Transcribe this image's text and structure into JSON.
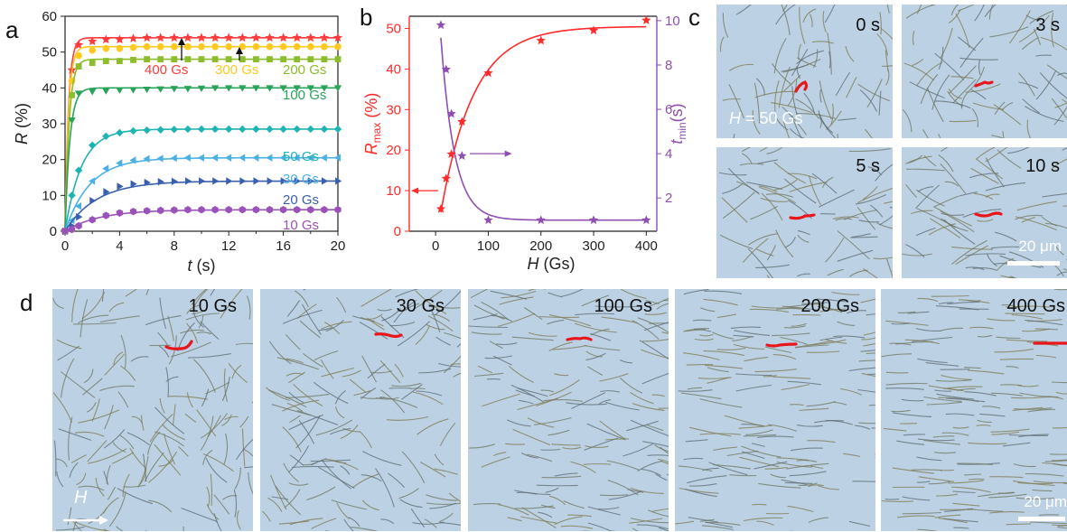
{
  "panels": {
    "a": "a",
    "b": "b",
    "c": "c",
    "d": "d"
  },
  "chart_data": [
    {
      "type": "line",
      "xlabel_italic": "t",
      "xlabel_unit": " (s)",
      "ylabel_italic": "R",
      "ylabel_unit": " (%)",
      "xlim": [
        0,
        20
      ],
      "ylim": [
        0,
        60
      ],
      "xticks": [
        0,
        4,
        8,
        12,
        16,
        20
      ],
      "yticks": [
        0,
        10,
        20,
        30,
        40,
        50,
        60
      ],
      "x": [
        0,
        0.5,
        1,
        2,
        3,
        4,
        5,
        6,
        7,
        8,
        9,
        10,
        11,
        12,
        13,
        14,
        15,
        16,
        17,
        18,
        19,
        20
      ],
      "series": [
        {
          "name": "400 Gs",
          "color": "#ff3b3b",
          "marker": "star",
          "plateau": 54,
          "tau": 0.25,
          "values": [
            0,
            45,
            52,
            53,
            53.5,
            53.5,
            53.8,
            54,
            54,
            54,
            54,
            54,
            54,
            54,
            54,
            54,
            54,
            54,
            54,
            54,
            54,
            54
          ]
        },
        {
          "name": "300 Gs",
          "color": "#ffc91f",
          "marker": "circle",
          "plateau": 51.5,
          "tau": 0.25,
          "values": [
            0,
            42,
            49,
            50.5,
            51,
            51,
            51.3,
            51.5,
            51.5,
            51.5,
            51.5,
            51.5,
            51.5,
            51.5,
            51.5,
            51.5,
            51.5,
            51.5,
            51.5,
            51.5,
            51.5,
            51.5
          ]
        },
        {
          "name": "200 Gs",
          "color": "#8dbd2c",
          "marker": "square",
          "plateau": 48,
          "tau": 0.3,
          "values": [
            0,
            38,
            46,
            47,
            47.5,
            47.5,
            47.8,
            48,
            48,
            48,
            48,
            48,
            48,
            48,
            48,
            48,
            48,
            48,
            48,
            48,
            48,
            48
          ]
        },
        {
          "name": "100 Gs",
          "color": "#2aa35a",
          "marker": "tri-down",
          "plateau": 40,
          "tau": 0.35,
          "values": [
            0,
            31,
            38.5,
            39,
            39.2,
            39.4,
            39.5,
            39.6,
            39.7,
            39.8,
            39.8,
            39.9,
            40,
            40,
            40,
            40,
            40,
            40,
            40,
            40,
            40,
            40
          ]
        },
        {
          "name": "50 Gs",
          "color": "#1fb3b3",
          "marker": "diamond",
          "plateau": 28.5,
          "tau": 1.2,
          "values": [
            0,
            10,
            17,
            24,
            26.5,
            27.5,
            28,
            28.2,
            28.3,
            28.4,
            28.5,
            28.5,
            28.5,
            28.5,
            28.5,
            28.5,
            28.5,
            28.5,
            28.5,
            28.5,
            28.5,
            28.5
          ]
        },
        {
          "name": "30 Gs",
          "color": "#4ab0e6",
          "marker": "tri-left",
          "plateau": 20.5,
          "tau": 1.8,
          "values": [
            0,
            3,
            7,
            14,
            17.5,
            19,
            19.8,
            20.2,
            20.3,
            20.4,
            20.5,
            20.5,
            20.5,
            20.5,
            20.5,
            20.5,
            20.5,
            20.5,
            20.5,
            20.5,
            20.5,
            20.5
          ]
        },
        {
          "name": "20 Gs",
          "color": "#3a5fb0",
          "marker": "tri-right",
          "plateau": 14,
          "tau": 2.3,
          "values": [
            0,
            1.5,
            4,
            8.5,
            11,
            12.5,
            13.2,
            13.6,
            13.8,
            13.9,
            14,
            14,
            14,
            14,
            14,
            14,
            14,
            14,
            14,
            14,
            14,
            14
          ]
        },
        {
          "name": "10 Gs",
          "color": "#9a52b8",
          "marker": "hexagon",
          "plateau": 6,
          "tau": 2.5,
          "values": [
            0,
            0.5,
            1.5,
            3.2,
            4.4,
            5.1,
            5.5,
            5.7,
            5.8,
            5.9,
            6,
            6,
            6,
            6,
            6,
            6,
            6,
            6,
            6,
            6,
            6,
            6
          ]
        }
      ]
    },
    {
      "type": "line",
      "x": [
        10,
        20,
        30,
        50,
        100,
        200,
        300,
        400
      ],
      "xlabel_italic": "H",
      "xlabel_unit": " (Gs)",
      "xlim": [
        -50,
        420
      ],
      "xticks": [
        0,
        100,
        200,
        300,
        400
      ],
      "left_axis": {
        "label_italic": "R",
        "label_sub": "max",
        "label_unit": " (%)",
        "ylim": [
          0,
          53
        ],
        "yticks": [
          0,
          10,
          20,
          30,
          40,
          50
        ],
        "color": "#ff2a2a"
      },
      "right_axis": {
        "label_italic": "t",
        "label_sub": "min",
        "label_unit": "(s)",
        "ylim": [
          0.5,
          10.2
        ],
        "yticks": [
          2,
          4,
          6,
          8,
          10
        ],
        "color": "#8e4fb0"
      },
      "series": [
        {
          "name": "Rmax",
          "axis": "left",
          "color": "#ff2a2a",
          "values": [
            5.5,
            13,
            19,
            27,
            39,
            47,
            49.5,
            52
          ]
        },
        {
          "name": "tmin",
          "axis": "right",
          "color": "#8e4fb0",
          "values": [
            9.8,
            7.8,
            5.8,
            3.9,
            1.0,
            1.0,
            1.0,
            1.0
          ]
        }
      ]
    }
  ],
  "panel_c": {
    "times": [
      "0 s",
      "3 s",
      "5 s",
      "10 s"
    ],
    "field_italic": "H",
    "field_text": " = 50 Gs",
    "scale": "20 μm"
  },
  "panel_d": {
    "fields": [
      "10 Gs",
      "30 Gs",
      "100 Gs",
      "200 Gs",
      "400 Gs"
    ],
    "arrow_label": "H",
    "scale": "20 μm"
  }
}
